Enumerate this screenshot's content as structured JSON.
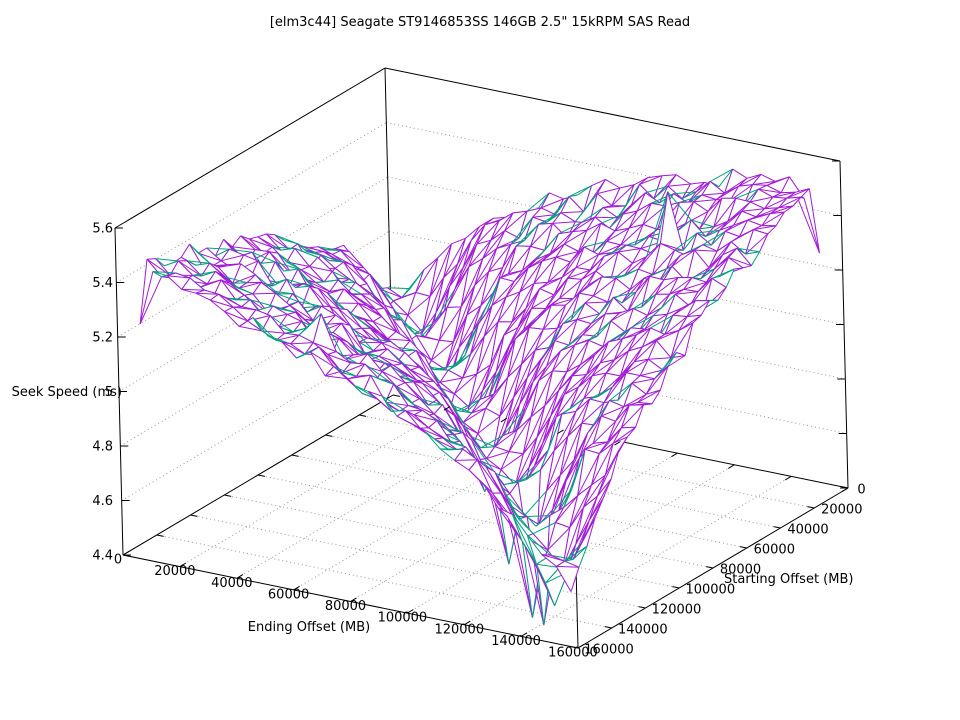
{
  "chart_data": {
    "type": "surface3d",
    "title": "[elm3c44] Seagate ST9146853SS 146GB 2.5\" 15kRPM SAS Read",
    "xlabel": "Ending Offset (MB)",
    "ylabel": "Starting Offset (MB)",
    "zlabel": "Seek Speed (ms)",
    "xlim": [
      0,
      160000
    ],
    "ylim": [
      0,
      160000
    ],
    "zlim": [
      4.4,
      5.6
    ],
    "x_ticks": [
      "0",
      "20000",
      "40000",
      "60000",
      "80000",
      "100000",
      "120000",
      "140000",
      "160000"
    ],
    "y_ticks": [
      "0",
      "20000",
      "40000",
      "60000",
      "80000",
      "100000",
      "120000",
      "140000",
      "160000"
    ],
    "z_ticks": [
      "4.4",
      "4.6",
      "4.8",
      "5",
      "5.2",
      "5.4",
      "5.6"
    ],
    "grid": true,
    "legend": null,
    "colors": {
      "surface": "#a21bd7",
      "underside": "#00a37e",
      "grid": "#999999",
      "border": "#000000",
      "background": "#ffffff"
    },
    "ending_offsets_mb": [
      0,
      20000,
      40000,
      60000,
      80000,
      100000,
      120000,
      140000,
      160000
    ],
    "starting_offsets_mb": [
      0,
      20000,
      40000,
      60000,
      80000,
      100000,
      120000,
      140000,
      160000
    ],
    "seek_ms": [
      [
        4.62,
        5.07,
        5.2,
        5.3,
        5.37,
        5.44,
        5.49,
        5.54,
        5.58
      ],
      [
        5.03,
        4.6,
        5.04,
        5.18,
        5.27,
        5.35,
        5.41,
        5.47,
        5.51
      ],
      [
        5.15,
        5.0,
        4.57,
        5.02,
        5.15,
        5.25,
        5.32,
        5.39,
        5.44
      ],
      [
        5.23,
        5.12,
        4.98,
        4.55,
        4.99,
        5.13,
        5.22,
        5.3,
        5.36
      ],
      [
        5.3,
        5.21,
        5.1,
        4.95,
        4.52,
        4.97,
        5.1,
        5.2,
        5.27
      ],
      [
        5.35,
        5.27,
        5.18,
        5.07,
        4.93,
        4.5,
        4.94,
        5.08,
        5.17
      ],
      [
        5.4,
        5.33,
        5.25,
        5.16,
        5.05,
        4.9,
        4.47,
        4.92,
        5.05
      ],
      [
        5.44,
        5.38,
        5.3,
        5.22,
        5.13,
        5.02,
        4.88,
        4.45,
        4.89
      ],
      [
        5.48,
        5.42,
        5.35,
        5.28,
        5.2,
        5.11,
        5.0,
        4.85,
        4.42
      ]
    ],
    "anomalies": [
      {
        "ending_mb": 155000,
        "starting_mb": 5000,
        "seek_ms": 5.27
      },
      {
        "ending_mb": 150000,
        "starting_mb": 5000,
        "seek_ms": 5.46
      },
      {
        "ending_mb": 5000,
        "starting_mb": 155000,
        "seek_ms": 5.24
      },
      {
        "ending_mb": 100000,
        "starting_mb": 100000,
        "seek_ms": 4.36
      },
      {
        "ending_mb": 115000,
        "starting_mb": 110000,
        "seek_ms": 4.32
      },
      {
        "ending_mb": 120000,
        "starting_mb": 120000,
        "seek_ms": 4.28
      },
      {
        "ending_mb": 130000,
        "starting_mb": 130000,
        "seek_ms": 4.31
      },
      {
        "ending_mb": 120000,
        "starting_mb": 35000,
        "seek_ms": 5.53
      },
      {
        "ending_mb": 60000,
        "starting_mb": 140000,
        "seek_ms": 5.34
      }
    ],
    "mesh_step_mb": 5000,
    "mesh_range_mb": [
      5000,
      155000
    ]
  }
}
